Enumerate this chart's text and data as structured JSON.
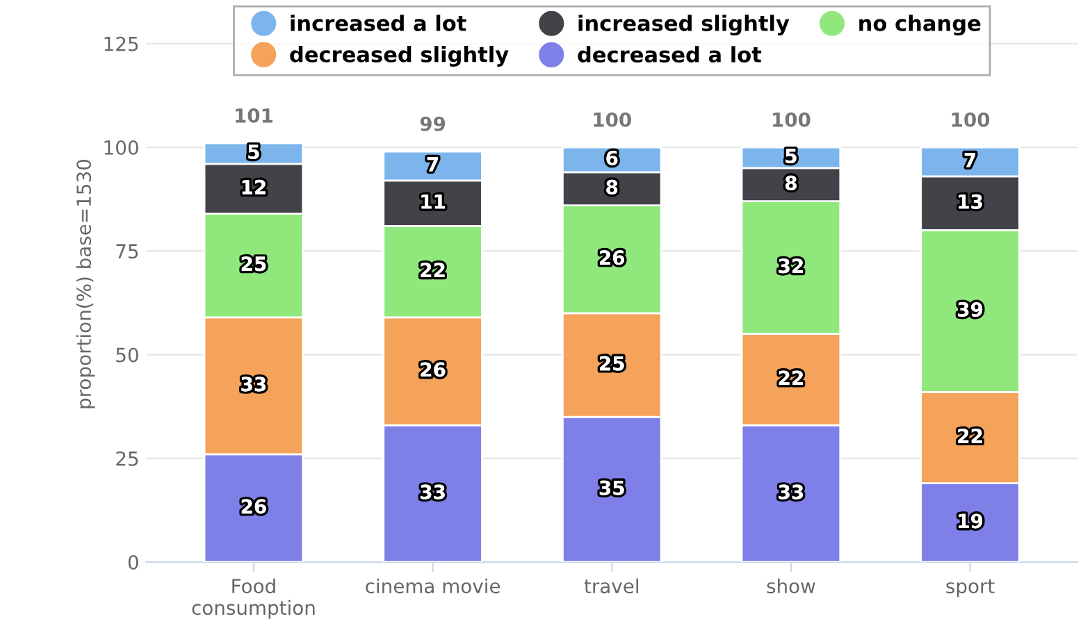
{
  "chart_data": {
    "type": "bar",
    "stacked": true,
    "ylabel": "proportion(%) base=1530",
    "categories": [
      "Food\nconsumption",
      "cinema movie",
      "travel",
      "show",
      "sport"
    ],
    "series": [
      {
        "name": "decreased a lot",
        "color": "#7f7fe8",
        "values": [
          26,
          33,
          35,
          33,
          19
        ]
      },
      {
        "name": "decreased slightly",
        "color": "#f5a25a",
        "values": [
          33,
          26,
          25,
          22,
          22
        ]
      },
      {
        "name": "no change",
        "color": "#90e87c",
        "values": [
          25,
          22,
          26,
          32,
          39
        ]
      },
      {
        "name": "increased slightly",
        "color": "#424249",
        "values": [
          12,
          11,
          8,
          8,
          13
        ]
      },
      {
        "name": "increased a lot",
        "color": "#7cb5ec",
        "values": [
          5,
          7,
          6,
          5,
          7
        ]
      }
    ],
    "totals": [
      "101",
      "99",
      "100",
      "100",
      "100"
    ],
    "data_labels": true,
    "ylim": [
      0,
      134
    ],
    "yticks": [
      0,
      25,
      50,
      75,
      100,
      125
    ],
    "grid": "y",
    "legend": "top"
  }
}
